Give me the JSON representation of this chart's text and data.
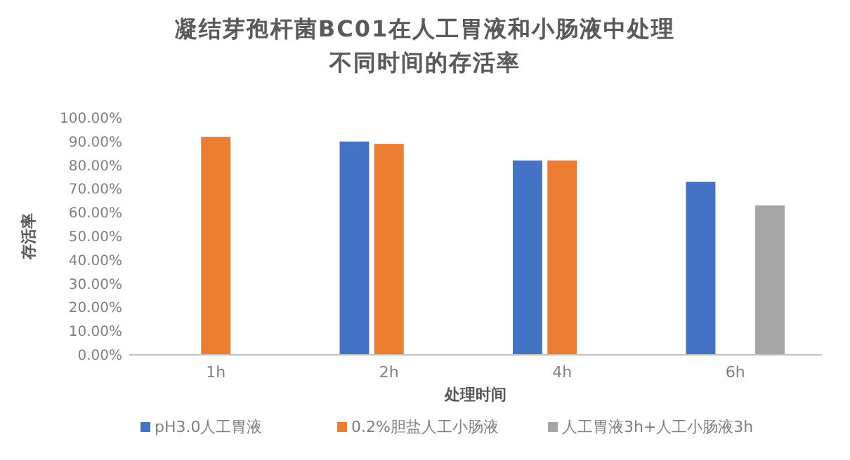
{
  "chart_data": {
    "type": "bar",
    "title": "凝结芽孢杆菌BC01在人工胃液和小肠液中处理不同时间的存活率",
    "xlabel": "处理时间",
    "ylabel": "存活率",
    "categories": [
      "1h",
      "2h",
      "4h",
      "6h"
    ],
    "series": [
      {
        "name": "pH3.0人工胃液",
        "color": "#4472c4",
        "values": [
          null,
          90,
          82,
          73
        ]
      },
      {
        "name": "0.2%胆盐人工小肠液",
        "color": "#ed7d31",
        "values": [
          92,
          89,
          82,
          null
        ]
      },
      {
        "name": "人工胃液3h+人工小肠液3h",
        "color": "#a5a5a5",
        "values": [
          null,
          null,
          null,
          63
        ]
      }
    ],
    "ylim": [
      0,
      100
    ],
    "yticks": [
      {
        "value": 0,
        "label": "0.00%"
      },
      {
        "value": 10,
        "label": "10.00%"
      },
      {
        "value": 20,
        "label": "20.00%"
      },
      {
        "value": 30,
        "label": "30.00%"
      },
      {
        "value": 40,
        "label": "40.00%"
      },
      {
        "value": 50,
        "label": "50.00%"
      },
      {
        "value": 60,
        "label": "60.00%"
      },
      {
        "value": 70,
        "label": "70.00%"
      },
      {
        "value": 80,
        "label": "80.00%"
      },
      {
        "value": 90,
        "label": "90.00%"
      },
      {
        "value": 100,
        "label": "100.00%"
      }
    ],
    "legend": "bottom"
  }
}
